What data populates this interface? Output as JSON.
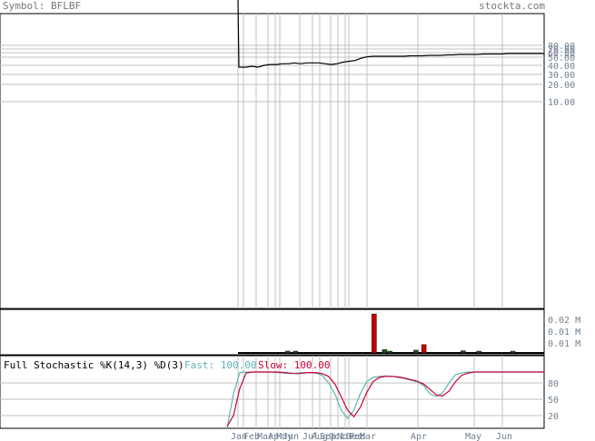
{
  "header": {
    "symbol_label": "Symbol: BFLBF",
    "brand": "stockta.com"
  },
  "indicator": {
    "label": "Full Stochastic %K(14,3) %D(3)",
    "fast_label": "Fast: 100.00",
    "slow_label": "Slow: 100.00"
  },
  "colors": {
    "price": "#000000",
    "grid": "#c0c0c0",
    "vol_up": "#1a5c1a",
    "vol_down": "#cc0000",
    "fast": "#5fb3b3",
    "slow": "#cc0033",
    "axis_text": "#708090"
  },
  "chart_data": [
    {
      "type": "line",
      "panel": "price",
      "scale": "log",
      "y_ticks": [
        "80.00",
        "70.00",
        "60.00",
        "50.00",
        "40.00",
        "30.00",
        "20.00",
        "10.00"
      ],
      "x": [
        0,
        2,
        4,
        6,
        8,
        10,
        12,
        14,
        16,
        18,
        20,
        22,
        24,
        26,
        28,
        30,
        32,
        34,
        36,
        38,
        40,
        42,
        44,
        46,
        48,
        50,
        52,
        54,
        56,
        58,
        60,
        62,
        64,
        66,
        68,
        70,
        72,
        74,
        76,
        78,
        80,
        82,
        84,
        86,
        88,
        90,
        92,
        94,
        96,
        98,
        100
      ],
      "values": [
        1000,
        38,
        39,
        38,
        40,
        41,
        41,
        42,
        42,
        43,
        42,
        43,
        43,
        43,
        42,
        41,
        42,
        44,
        45,
        46,
        49,
        51,
        52,
        52,
        52,
        52,
        52,
        52,
        53,
        53,
        53,
        54,
        54,
        54,
        55,
        55,
        56,
        56,
        56,
        56,
        57,
        57,
        57,
        57,
        58,
        58,
        58,
        58,
        58,
        58,
        58
      ]
    },
    {
      "type": "bar",
      "panel": "volume",
      "y_ticks": [
        "0.02 M",
        "0.01 M",
        "0.01 M"
      ],
      "bars": [
        {
          "x": 19,
          "value": 0.001,
          "dir": "up"
        },
        {
          "x": 22,
          "value": 0.0008,
          "dir": "up"
        },
        {
          "x": 52,
          "value": 0.021,
          "dir": "down"
        },
        {
          "x": 56,
          "value": 0.0018,
          "dir": "up"
        },
        {
          "x": 58,
          "value": 0.0006,
          "dir": "up"
        },
        {
          "x": 68,
          "value": 0.0015,
          "dir": "up"
        },
        {
          "x": 71,
          "value": 0.0045,
          "dir": "down"
        },
        {
          "x": 86,
          "value": 0.0012,
          "dir": "up"
        },
        {
          "x": 92,
          "value": 0.0005,
          "dir": "up"
        },
        {
          "x": 105,
          "value": 0.0009,
          "dir": "up"
        }
      ]
    },
    {
      "type": "line",
      "panel": "stochastic",
      "y_ticks": [
        "80",
        "50",
        "20"
      ],
      "x_labels": [
        "Jan",
        "Feb",
        "Mar",
        "Apr",
        "May",
        "Jun",
        "Jul",
        "Aug",
        "Sep",
        "Oct",
        "Nov",
        "Dec",
        "Feb",
        "Mar",
        "Apr",
        "May",
        "Jun"
      ],
      "series": [
        {
          "name": "Fast",
          "x": [
            0,
            2,
            4,
            6,
            8,
            10,
            12,
            14,
            16,
            18,
            20,
            22,
            24,
            26,
            28,
            30,
            32,
            34,
            36,
            38,
            40,
            42,
            44,
            46,
            48,
            50,
            52,
            54,
            56,
            58,
            60,
            62,
            64,
            66,
            68,
            70,
            72,
            74,
            76,
            78,
            80,
            82,
            84,
            86,
            88,
            90,
            92,
            94,
            96,
            98,
            100
          ],
          "values": [
            0,
            60,
            99,
            100,
            100,
            100,
            100,
            100,
            99,
            98,
            97,
            98,
            99,
            99,
            98,
            94,
            80,
            60,
            30,
            15,
            30,
            60,
            82,
            90,
            92,
            93,
            92,
            90,
            88,
            85,
            82,
            75,
            60,
            55,
            62,
            80,
            95,
            98,
            100,
            100,
            100,
            100,
            100,
            100,
            100,
            100,
            100,
            100,
            100,
            100,
            100
          ]
        },
        {
          "name": "Slow",
          "x": [
            0,
            2,
            4,
            6,
            8,
            10,
            12,
            14,
            16,
            18,
            20,
            22,
            24,
            26,
            28,
            30,
            32,
            34,
            36,
            38,
            40,
            42,
            44,
            46,
            48,
            50,
            52,
            54,
            56,
            58,
            60,
            62,
            64,
            66,
            68,
            70,
            72,
            74,
            76,
            78,
            80,
            82,
            84,
            86,
            88,
            90,
            92,
            94,
            96,
            98,
            100
          ],
          "values": [
            0,
            20,
            70,
            98,
            100,
            100,
            100,
            100,
            100,
            99,
            98,
            97,
            98,
            99,
            99,
            97,
            92,
            78,
            55,
            30,
            18,
            35,
            62,
            82,
            90,
            92,
            92,
            91,
            89,
            86,
            83,
            78,
            68,
            58,
            56,
            65,
            82,
            94,
            98,
            100,
            100,
            100,
            100,
            100,
            100,
            100,
            100,
            100,
            100,
            100,
            100
          ]
        }
      ]
    }
  ]
}
